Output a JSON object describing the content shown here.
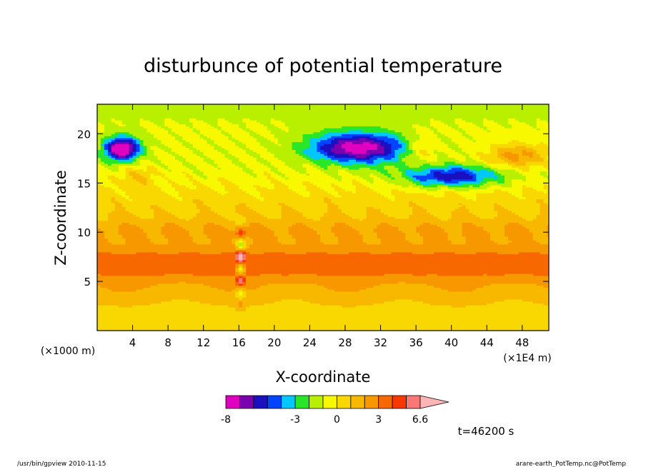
{
  "chart_data": {
    "type": "heatmap",
    "title": "disturbunce of potential temperature",
    "xlabel": "X-coordinate",
    "ylabel": "Z-coordinate",
    "x_unit_note": "(×1E4 m)",
    "y_unit_note": "(×1000 m)",
    "xlim": [
      0,
      51
    ],
    "ylim": [
      0,
      23
    ],
    "x_ticks": [
      4,
      8,
      12,
      16,
      20,
      24,
      28,
      32,
      36,
      40,
      44,
      48
    ],
    "y_ticks": [
      5,
      10,
      15,
      20
    ],
    "colorbar": {
      "levels": [
        -8,
        -7,
        -6,
        -5,
        -4,
        -3,
        -2,
        -1,
        0,
        1,
        2,
        3,
        4,
        5,
        6,
        6.6
      ],
      "labeled_ticks": [
        -8,
        -3,
        0,
        3,
        6.6
      ],
      "colors": [
        "#e000c0",
        "#7a00b0",
        "#1a10c0",
        "#0044ff",
        "#00c8ff",
        "#28e628",
        "#b8f000",
        "#f8f800",
        "#f8d800",
        "#f8b800",
        "#f89800",
        "#f86800",
        "#f83800",
        "#f87878",
        "#fcb4b4"
      ]
    },
    "annotation": "t=46200 s"
  },
  "footer": {
    "left": "/usr/bin/gpview  2010-11-15",
    "right": "arare-earth_PotTemp.nc@PotTemp"
  }
}
